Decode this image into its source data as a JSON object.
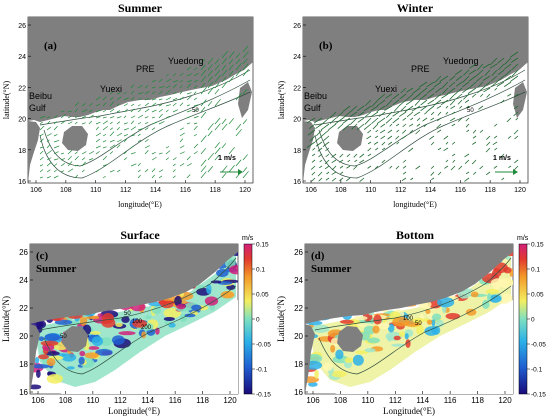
{
  "panels": [
    {
      "id": "a",
      "title": "Summer",
      "letter": "(a)",
      "ylabel": "latitude(°N)",
      "xlabel": "longitude(°E)",
      "xticks": [
        "106",
        "108",
        "110",
        "112",
        "114",
        "116",
        "118",
        "120"
      ],
      "yticks": [
        "26",
        "24",
        "22",
        "20",
        "18",
        "16"
      ],
      "places": [
        "PRE",
        "Yuedong",
        "Yuexi",
        "Beibu",
        "Gulf"
      ],
      "contour_labels": [
        "50"
      ],
      "scale_label": "1 m/s"
    },
    {
      "id": "b",
      "title": "Winter",
      "letter": "(b)",
      "ylabel": "latitude(°N)",
      "xlabel": "longitude(°E)",
      "xticks": [
        "106",
        "108",
        "110",
        "112",
        "114",
        "116",
        "118",
        "120"
      ],
      "yticks": [
        "26",
        "24",
        "22",
        "20",
        "18",
        "16"
      ],
      "places": [
        "PRE",
        "Yuedong",
        "Yuexi",
        "Beibu",
        "Gulf"
      ],
      "contour_labels": [
        "50"
      ],
      "scale_label": "1 m/s"
    },
    {
      "id": "c",
      "title": "Surface",
      "letter": "(c)",
      "season": "Summer",
      "ylabel": "Latitude(°N)",
      "xlabel": "Longitude(°E)",
      "xticks": [
        "106",
        "108",
        "110",
        "112",
        "114",
        "116",
        "118",
        "120"
      ],
      "yticks": [
        "26",
        "24",
        "22",
        "20",
        "18",
        "16"
      ],
      "contour_labels": [
        "50",
        "100",
        "200",
        "50"
      ],
      "colorbar_unit": "m/s",
      "colorbar_ticks": [
        "0.15",
        "0.1",
        "0.05",
        "0",
        "-0.05",
        "-0.1",
        "-0.15"
      ]
    },
    {
      "id": "d",
      "title": "Bottom",
      "letter": "(d)",
      "season": "Summer",
      "ylabel": "Latitude(°N)",
      "xlabel": "Longitude(°E)",
      "xticks": [
        "106",
        "108",
        "110",
        "112",
        "114",
        "116",
        "118",
        "120"
      ],
      "yticks": [
        "26",
        "24",
        "22",
        "20",
        "18",
        "16"
      ],
      "contour_labels": [
        "100",
        "50"
      ],
      "colorbar_unit": "m/s",
      "colorbar_ticks": [
        "0.15",
        "0.1",
        "0.05",
        "0",
        "-0.05",
        "-0.1",
        "-0.15"
      ]
    }
  ],
  "colors": {
    "land": "#7f7f7f",
    "vector": "#1f8a3a",
    "contour": "#2f4f3f"
  },
  "colorbar_range": [
    -0.15,
    0.15
  ]
}
